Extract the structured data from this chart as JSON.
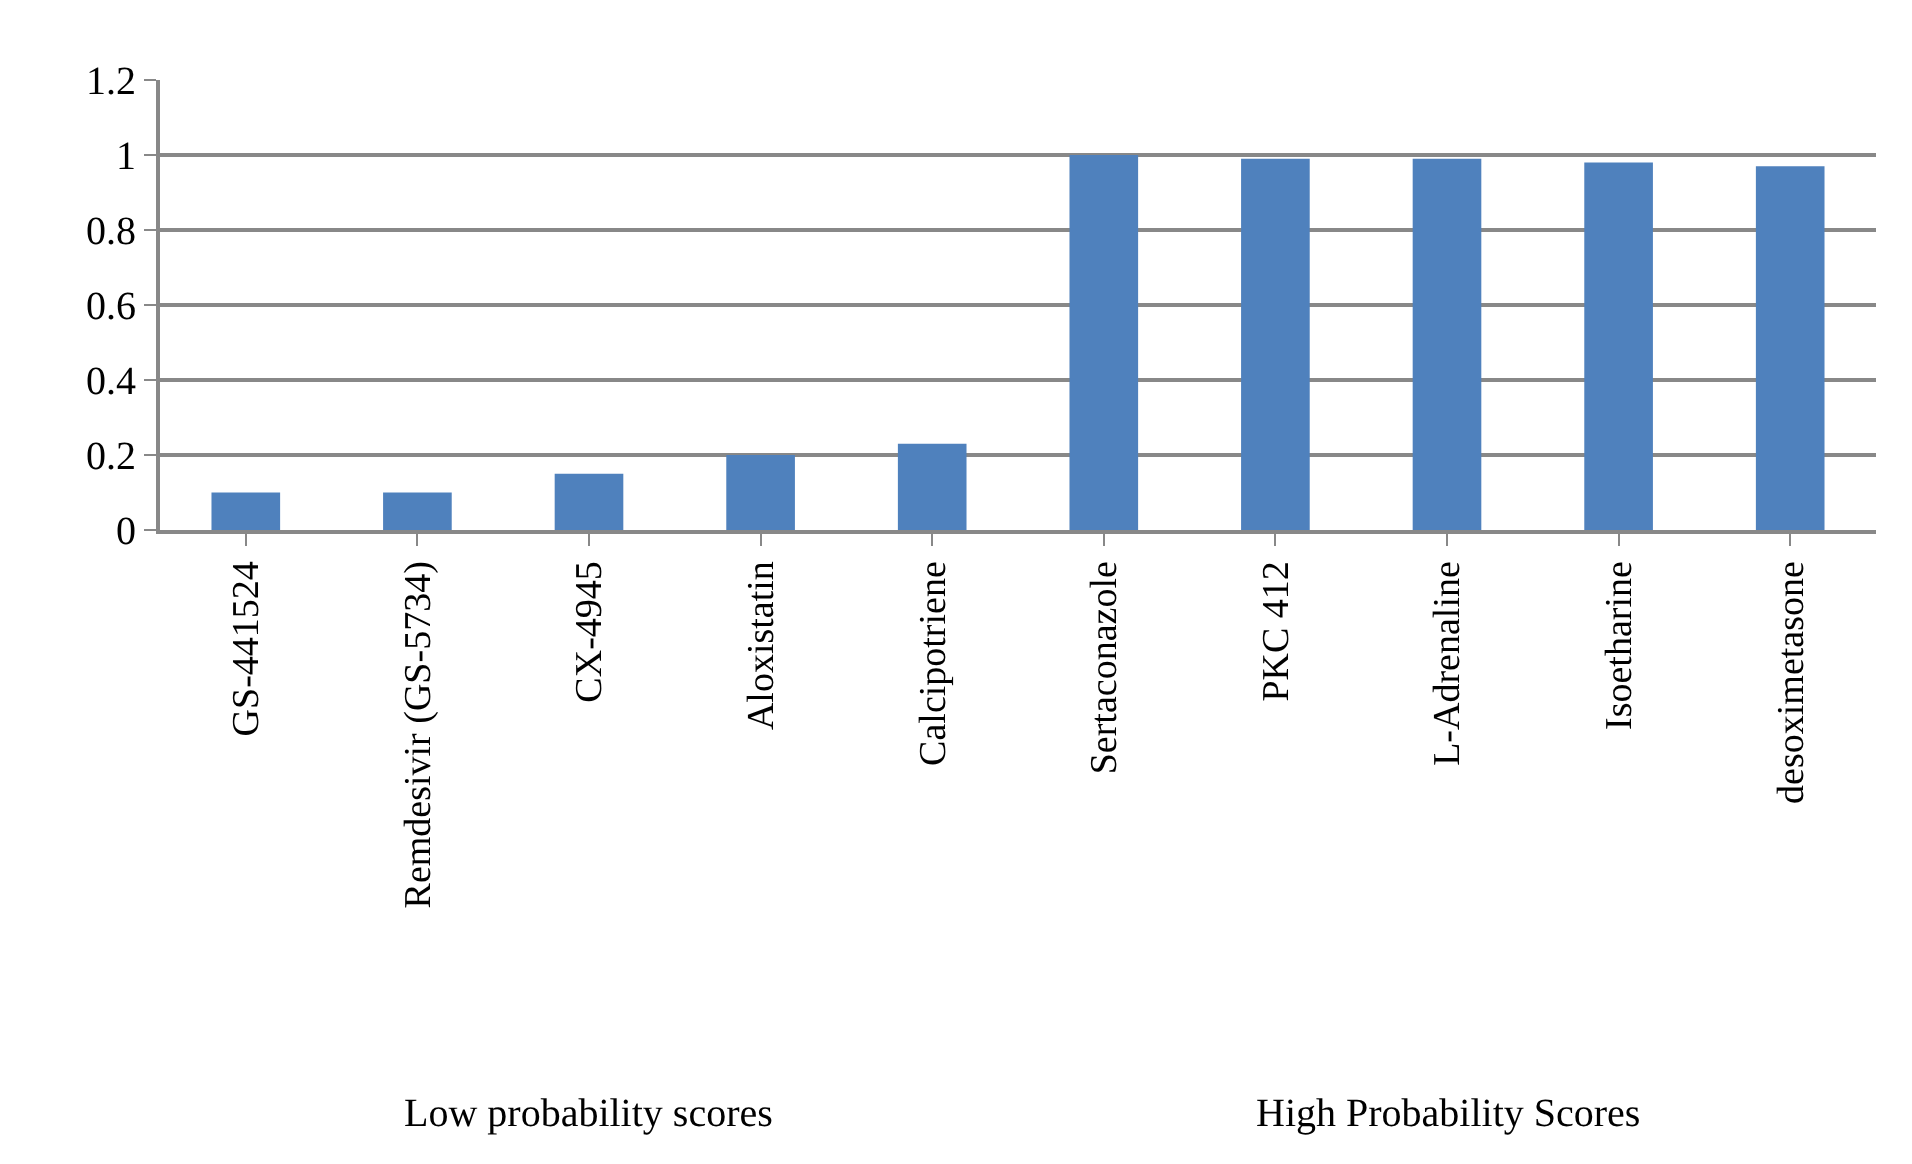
{
  "chart_data": {
    "type": "bar",
    "categories": [
      "GS-441524",
      "Remdesivir (GS-5734)",
      "CX-4945",
      "Aloxistatin",
      "Calcipotriene",
      "Sertaconazole",
      "PKC 412",
      "L-Adrenaline",
      "Isoetharine",
      "desoximetasone"
    ],
    "values": [
      0.1,
      0.1,
      0.15,
      0.2,
      0.23,
      1.0,
      0.99,
      0.99,
      0.98,
      0.97
    ],
    "color": "#4f81bd",
    "ylim": [
      0,
      1.2
    ],
    "yticks": [
      0,
      0.2,
      0.4,
      0.6,
      0.8,
      1,
      1.2
    ],
    "grid": "y",
    "annotations": [
      "Low probability scores",
      "High Probability Scores"
    ]
  }
}
